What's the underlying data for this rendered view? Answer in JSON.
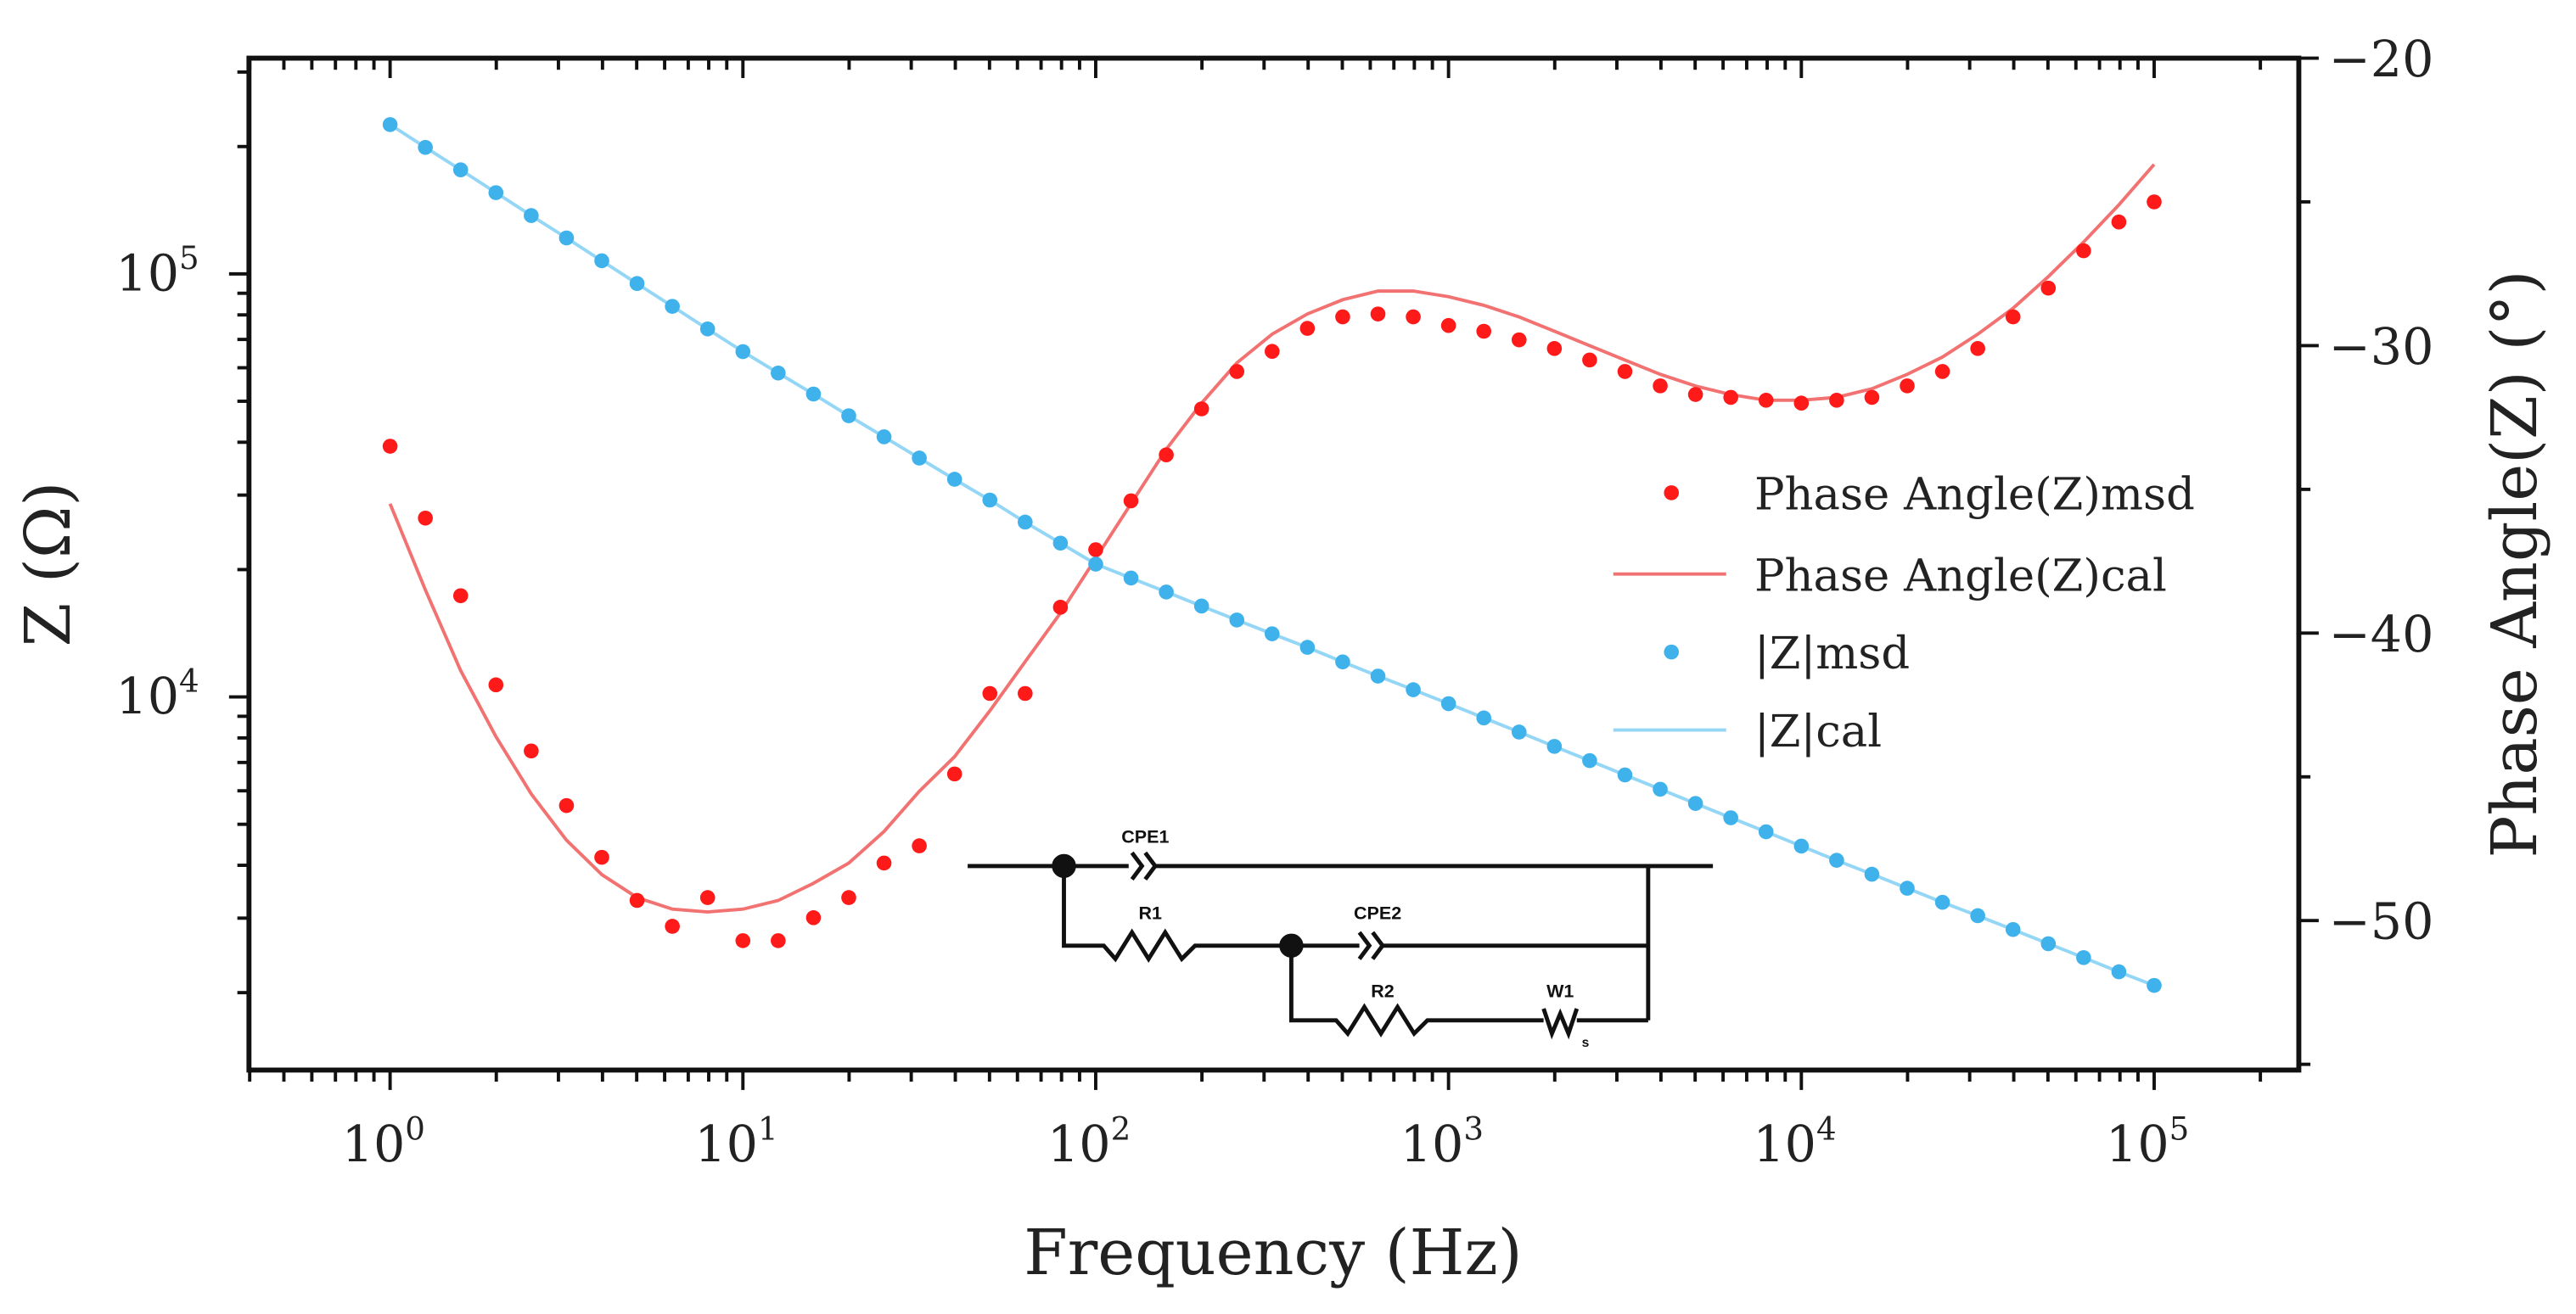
{
  "chart_data": {
    "type": "line",
    "title": "",
    "xlabel": "Frequency (Hz)",
    "ylabel_left": "Z (Ω)",
    "ylabel_right": "Phase Angle(Z) (°)",
    "x_scale": "log",
    "y_left_scale": "log",
    "xlim_log10": [
      -0.4,
      5.41
    ],
    "ylim_left_log10": [
      3.118,
      5.51
    ],
    "ylim_right": [
      -55.2,
      -20
    ],
    "x_ticks": [
      {
        "base": "10",
        "exp": "0"
      },
      {
        "base": "10",
        "exp": "1"
      },
      {
        "base": "10",
        "exp": "2"
      },
      {
        "base": "10",
        "exp": "3"
      },
      {
        "base": "10",
        "exp": "4"
      },
      {
        "base": "10",
        "exp": "5"
      }
    ],
    "y_left_ticks": [
      {
        "base": "10",
        "exp": "4",
        "value": 10000
      },
      {
        "base": "10",
        "exp": "5",
        "value": 100000
      }
    ],
    "y_right_ticks": [
      {
        "label": "−20",
        "value": -20
      },
      {
        "label": "−30",
        "value": -30
      },
      {
        "label": "−40",
        "value": -40
      },
      {
        "label": "−50",
        "value": -50
      }
    ],
    "grid": false,
    "legend_position": "center-right",
    "x_log10": [
      0,
      0.1,
      0.2,
      0.3,
      0.4,
      0.5,
      0.6,
      0.7,
      0.8,
      0.9,
      1,
      1.1,
      1.2,
      1.3,
      1.4,
      1.5,
      1.6,
      1.7,
      1.8,
      1.9,
      2,
      2.1,
      2.2,
      2.3,
      2.4,
      2.5,
      2.6,
      2.7,
      2.8,
      2.9,
      3,
      3.1,
      3.2,
      3.3,
      3.4,
      3.5,
      3.6,
      3.7,
      3.8,
      3.9,
      4,
      4.1,
      4.2,
      4.3,
      4.4,
      4.5,
      4.6,
      4.7,
      4.8,
      4.9,
      5
    ],
    "series": [
      {
        "name": "Phase Angle(Z)msd",
        "axis": "right",
        "style": "markers",
        "color": "#ff1a1a",
        "values": [
          -33.5,
          -36.0,
          -38.7,
          -41.8,
          -44.1,
          -46.0,
          -47.8,
          -49.3,
          -50.2,
          -49.2,
          -50.7,
          -50.7,
          -49.9,
          -49.2,
          -48.0,
          -47.4,
          -44.9,
          -42.1,
          -42.1,
          -39.1,
          -37.1,
          -35.4,
          -33.8,
          -32.2,
          -30.9,
          -30.2,
          -29.4,
          -29.0,
          -28.9,
          -29.0,
          -29.3,
          -29.5,
          -29.8,
          -30.1,
          -30.5,
          -30.9,
          -31.4,
          -31.7,
          -31.8,
          -31.9,
          -32.0,
          -31.9,
          -31.8,
          -31.4,
          -30.9,
          -30.1,
          -29.0,
          -28.0,
          -26.7,
          -25.7,
          -25.0
        ]
      },
      {
        "name": "Phase Angle(Z)cal",
        "axis": "right",
        "style": "line",
        "color": "#f27272",
        "values": [
          -35.5,
          -38.5,
          -41.3,
          -43.6,
          -45.6,
          -47.2,
          -48.4,
          -49.2,
          -49.6,
          -49.7,
          -49.6,
          -49.3,
          -48.7,
          -48.0,
          -46.9,
          -45.5,
          -44.3,
          -42.7,
          -41.0,
          -39.3,
          -37.4,
          -35.5,
          -33.6,
          -32.0,
          -30.6,
          -29.6,
          -28.9,
          -28.4,
          -28.1,
          -28.1,
          -28.3,
          -28.6,
          -29.0,
          -29.5,
          -30.0,
          -30.5,
          -31.0,
          -31.4,
          -31.7,
          -31.9,
          -31.9,
          -31.8,
          -31.5,
          -31.0,
          -30.4,
          -29.6,
          -28.7,
          -27.6,
          -26.4,
          -25.1,
          -23.7
        ]
      },
      {
        "name": "|Z|msd",
        "axis": "left",
        "style": "markers",
        "color": "#3fb2ec",
        "values": [
          225400,
          199100,
          176200,
          155600,
          137400,
          121600,
          107400,
          94900,
          83800,
          74100,
          65500,
          58300,
          52000,
          46200,
          41200,
          36700,
          32700,
          29200,
          25900,
          23100,
          20600,
          19100,
          17700,
          16400,
          15200,
          14100,
          13100,
          12100,
          11200,
          10400,
          9640,
          8920,
          8260,
          7640,
          7070,
          6540,
          6050,
          5600,
          5180,
          4800,
          4440,
          4110,
          3810,
          3530,
          3270,
          3040,
          2820,
          2610,
          2420,
          2240,
          2080
        ]
      },
      {
        "name": "|Z|cal",
        "axis": "left",
        "style": "line",
        "color": "#94d6f6",
        "values": [
          225400,
          199100,
          176200,
          155600,
          137400,
          121600,
          107400,
          94900,
          83800,
          74100,
          65500,
          58300,
          52000,
          46200,
          41200,
          36700,
          32700,
          29200,
          25900,
          23100,
          20600,
          19100,
          17700,
          16400,
          15200,
          14100,
          13100,
          12100,
          11200,
          10400,
          9640,
          8920,
          8260,
          7640,
          7070,
          6540,
          6050,
          5600,
          5180,
          4800,
          4440,
          4110,
          3810,
          3530,
          3270,
          3040,
          2820,
          2610,
          2420,
          2240,
          2080
        ]
      }
    ]
  },
  "circuit": {
    "labels": {
      "cpe1": "CPE1",
      "r1": "R1",
      "cpe2": "CPE2",
      "r2": "R2",
      "w1": "W1",
      "ws": "W",
      "ws_sub": "s"
    }
  }
}
